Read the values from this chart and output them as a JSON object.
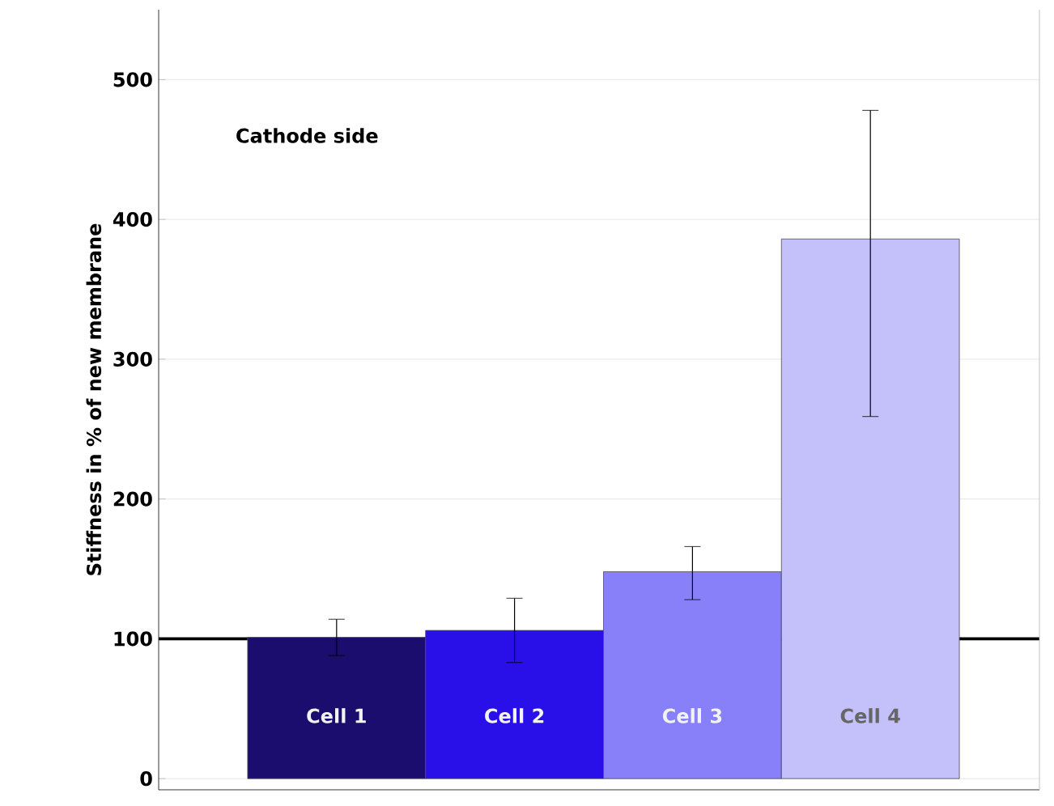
{
  "chart_data": {
    "type": "bar",
    "ylabel": "Stiffness in % of new membrane",
    "annotations": [
      "Cathode side"
    ],
    "categories": [
      "Cell 1",
      "Cell 2",
      "Cell 3",
      "Cell 4"
    ],
    "values": [
      101,
      106,
      148,
      386
    ],
    "colors": [
      "#1a0d6e",
      "#2a10e8",
      "#8880f8",
      "#c4c0fa"
    ],
    "errors": [
      [
        88,
        114
      ],
      [
        83,
        129
      ],
      [
        128,
        166
      ],
      [
        259,
        478
      ]
    ],
    "ylim": [
      -8,
      550
    ],
    "yticks": [
      0,
      100,
      200,
      300,
      400,
      500
    ],
    "grid": "y",
    "tick_labels": "y",
    "ref_lines": [
      {
        "axis": "y",
        "value": 100,
        "color": "#000000"
      }
    ]
  }
}
